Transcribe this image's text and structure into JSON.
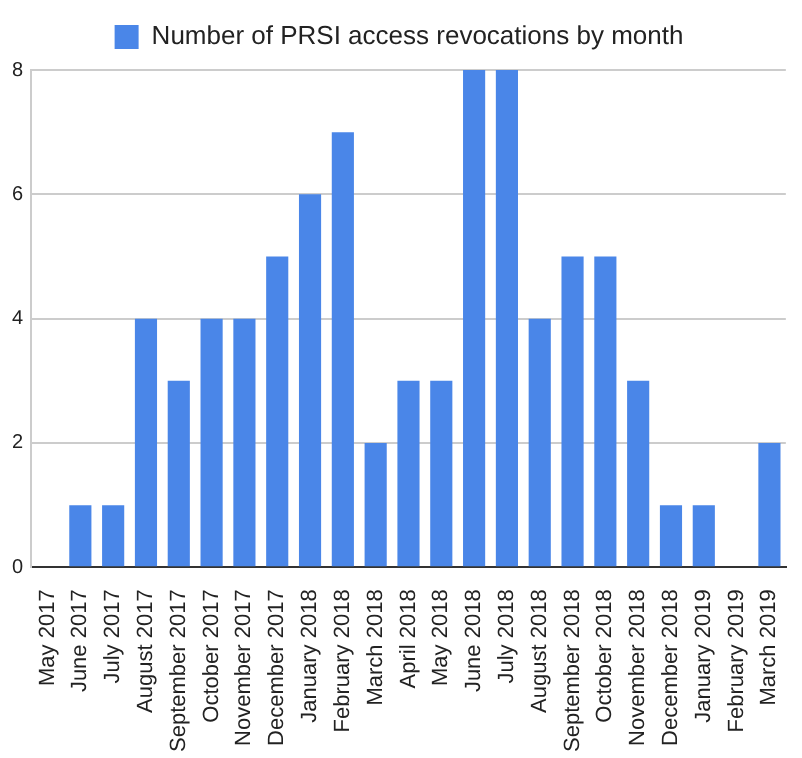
{
  "chart_data": {
    "type": "bar",
    "categories": [
      "May 2017",
      "June 2017",
      "July 2017",
      "August 2017",
      "September 2017",
      "October 2017",
      "November 2017",
      "December 2017",
      "January 2018",
      "February 2018",
      "March 2018",
      "April 2018",
      "May 2018",
      "June 2018",
      "July 2018",
      "August 2018",
      "September 2018",
      "October 2018",
      "November 2018",
      "December 2018",
      "January 2019",
      "February 2019",
      "March 2019"
    ],
    "series": [
      {
        "name": "Number of PRSI access revocations by month",
        "color": "#4a86e8",
        "values": [
          0,
          1,
          1,
          4,
          3,
          4,
          4,
          5,
          6,
          7,
          2,
          3,
          3,
          8,
          8,
          4,
          5,
          5,
          3,
          1,
          1,
          0,
          2
        ]
      }
    ],
    "ylim": [
      0,
      8
    ],
    "yticks": [
      0,
      2,
      4,
      6,
      8
    ],
    "grid": "y",
    "legend": "top"
  }
}
